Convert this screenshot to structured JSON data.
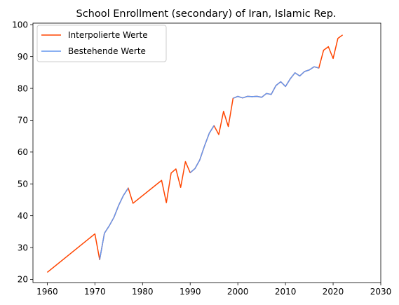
{
  "chart_data": {
    "type": "line",
    "title": "School Enrollment (secondary) of Iran, Islamic Rep.",
    "xlabel": "",
    "ylabel": "",
    "xlim": [
      1957,
      2030
    ],
    "ylim": [
      19,
      100.5
    ],
    "xticks": [
      1960,
      1970,
      1980,
      1990,
      2000,
      2010,
      2020,
      2030
    ],
    "yticks": [
      20,
      30,
      40,
      50,
      60,
      70,
      80,
      90,
      100
    ],
    "grid": false,
    "legend_position": "top-left",
    "series": [
      {
        "name": "Interpolierte Werte",
        "color": "#ff4500",
        "x": [
          1960,
          1970,
          1971,
          1972,
          1973,
          1974,
          1975,
          1976,
          1977,
          1978,
          1984,
          1985,
          1986,
          1987,
          1988,
          1989,
          1990,
          1991,
          1992,
          1993,
          1994,
          1995,
          1996,
          1997,
          1998,
          1999,
          2000,
          2001,
          2002,
          2003,
          2004,
          2005,
          2006,
          2007,
          2008,
          2009,
          2010,
          2011,
          2012,
          2013,
          2014,
          2015,
          2016,
          2017,
          2018,
          2019,
          2020,
          2021,
          2022
        ],
        "y": [
          22.2,
          34.3,
          26.2,
          34.5,
          36.8,
          39.5,
          43.3,
          46.4,
          48.7,
          43.9,
          51.1,
          44.1,
          53.4,
          54.7,
          48.9,
          57.0,
          53.5,
          54.8,
          57.5,
          61.9,
          65.9,
          68.3,
          65.5,
          72.8,
          68.0,
          76.9,
          77.5,
          77.0,
          77.5,
          77.4,
          77.5,
          77.2,
          78.4,
          78.1,
          80.9,
          82.1,
          80.6,
          83.0,
          84.9,
          83.9,
          85.3,
          85.8,
          86.8,
          86.4,
          92.0,
          93.1,
          89.4,
          95.7,
          96.8
        ]
      },
      {
        "name": "Bestehende Werte",
        "color": "#6495ed",
        "segments": [
          {
            "x": [
              1971,
              1972,
              1973,
              1974,
              1975,
              1976,
              1977
            ],
            "y": [
              26.2,
              34.5,
              36.8,
              39.5,
              43.3,
              46.4,
              48.7
            ]
          },
          {
            "x": [
              1990,
              1991,
              1992,
              1993,
              1994,
              1995
            ],
            "y": [
              53.5,
              54.8,
              57.5,
              61.9,
              65.9,
              68.3
            ]
          },
          {
            "x": [
              1999,
              2000,
              2001,
              2002,
              2003,
              2004,
              2005,
              2006,
              2007,
              2008,
              2009,
              2010,
              2011,
              2012,
              2013,
              2014,
              2015,
              2016,
              2017
            ],
            "y": [
              76.9,
              77.5,
              77.0,
              77.5,
              77.4,
              77.5,
              77.2,
              78.4,
              78.1,
              80.9,
              82.1,
              80.6,
              83.0,
              84.9,
              83.9,
              85.3,
              85.8,
              86.8,
              86.4
            ]
          }
        ]
      }
    ]
  }
}
